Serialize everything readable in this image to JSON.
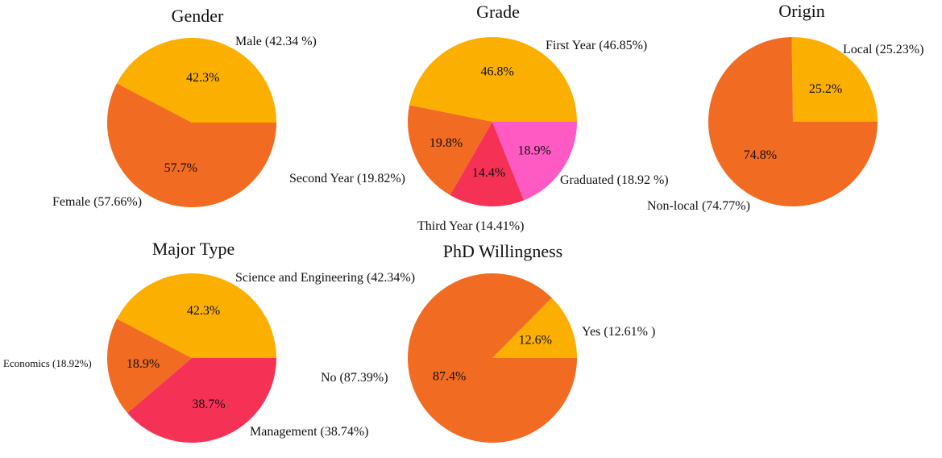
{
  "chart_data": [
    {
      "type": "pie",
      "title": "Gender",
      "slices": [
        {
          "label": "Male (42.34 %)",
          "value": 42.34,
          "pct_text": "42.3%",
          "color": "#FBAF00"
        },
        {
          "label": "Female (57.66%)",
          "value": 57.66,
          "pct_text": "57.7%",
          "color": "#F26B22"
        }
      ]
    },
    {
      "type": "pie",
      "title": "Grade",
      "slices": [
        {
          "label": "First Year (46.85%)",
          "value": 46.85,
          "pct_text": "46.8%",
          "color": "#FBAF00"
        },
        {
          "label": "Second Year (19.82%)",
          "value": 19.82,
          "pct_text": "19.8%",
          "color": "#F26B22"
        },
        {
          "label": "Third Year (14.41%)",
          "value": 14.41,
          "pct_text": "14.4%",
          "color": "#F53256"
        },
        {
          "label": "Graduated (18.92 %)",
          "value": 18.92,
          "pct_text": "18.9%",
          "color": "#FF5AC4"
        }
      ]
    },
    {
      "type": "pie",
      "title": "Origin",
      "slices": [
        {
          "label": "Local (25.23%)",
          "value": 25.23,
          "pct_text": "25.2%",
          "color": "#FBAF00"
        },
        {
          "label": "Non-local (74.77%)",
          "value": 74.77,
          "pct_text": "74.8%",
          "color": "#F26B22"
        }
      ]
    },
    {
      "type": "pie",
      "title": "Major Type",
      "slices": [
        {
          "label": "Science and Engineering (42.34%)",
          "value": 42.34,
          "pct_text": "42.3%",
          "color": "#FBAF00"
        },
        {
          "label": "Economics (18.92%)",
          "value": 18.92,
          "pct_text": "18.9%",
          "color": "#F26B22"
        },
        {
          "label": "Management (38.74%)",
          "value": 38.74,
          "pct_text": "38.7%",
          "color": "#F53256"
        }
      ]
    },
    {
      "type": "pie",
      "title": "PhD Willingness",
      "slices": [
        {
          "label": "Yes (12.61% )",
          "value": 12.61,
          "pct_text": "12.6%",
          "color": "#FBAF00"
        },
        {
          "label": "No (87.39%)",
          "value": 87.39,
          "pct_text": "87.4%",
          "color": "#F26B22"
        }
      ]
    }
  ]
}
